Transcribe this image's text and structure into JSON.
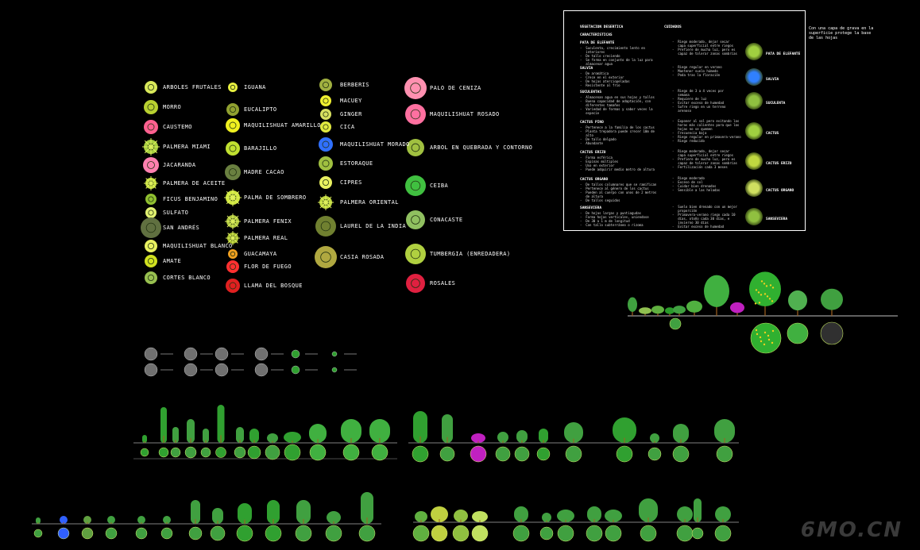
{
  "legend_list": [
    {
      "id": "a1",
      "label": "ARBOLES FRUTALES",
      "color": "#d8e85a",
      "icon": "tree-symbol-icon"
    },
    {
      "id": "a2",
      "label": "MORRO",
      "color": "#b8d030",
      "icon": "tree-symbol-icon"
    },
    {
      "id": "a3",
      "label": "CAUSTEMO",
      "color": "#ff6090",
      "icon": "flower-symbol-icon"
    },
    {
      "id": "a4",
      "label": "PALMERA MIAMI",
      "color": "#a8d040",
      "icon": "palm-symbol-icon"
    },
    {
      "id": "a5",
      "label": "JACARANDA",
      "color": "#ff80b0",
      "icon": "tree-symbol-icon"
    },
    {
      "id": "a6",
      "label": "PALMERA DE ACEITE",
      "color": "#c8e040",
      "icon": "palm-symbol-icon"
    },
    {
      "id": "a7",
      "label": "FICUS BENJAMINO",
      "color": "#90c030",
      "icon": "tree-symbol-icon"
    },
    {
      "id": "a8",
      "label": "SULFATO",
      "color": "#e0f070",
      "icon": "tree-symbol-icon"
    },
    {
      "id": "a9",
      "label": "SAN ANDRÉS",
      "color": "#607040",
      "icon": "tree-symbol-icon"
    },
    {
      "id": "a10",
      "label": "MAQUILISHUAT BLANCO",
      "color": "#e8f060",
      "icon": "tree-symbol-icon"
    },
    {
      "id": "a11",
      "label": "AMATE",
      "color": "#d0e020",
      "icon": "tree-symbol-icon"
    },
    {
      "id": "a12",
      "label": "CORTES BLANCO",
      "color": "#98c050",
      "icon": "tree-symbol-icon"
    },
    {
      "id": "b1",
      "label": "IGUANA",
      "color": "#e8f040",
      "icon": "shrub-symbol-icon"
    },
    {
      "id": "b2",
      "label": "EUCALIPTO",
      "color": "#90a030",
      "icon": "tree-symbol-icon"
    },
    {
      "id": "b3",
      "label": "MAQUILISHUAT AMARILLO",
      "color": "#f0f020",
      "icon": "tree-symbol-icon"
    },
    {
      "id": "b4",
      "label": "BARAJILLO",
      "color": "#c0e030",
      "icon": "tree-symbol-icon"
    },
    {
      "id": "b5",
      "label": "MADRE CACAO",
      "color": "#6a8040",
      "icon": "tree-symbol-icon"
    },
    {
      "id": "b6",
      "label": "PALMA DE SOMBRERO",
      "color": "#d0e840",
      "icon": "palm-symbol-icon"
    },
    {
      "id": "b7",
      "label": "PALMERA FENIX",
      "color": "#b0c840",
      "icon": "palm-symbol-icon"
    },
    {
      "id": "b8",
      "label": "PALMERA REAL",
      "color": "#a8c030",
      "icon": "palm-symbol-icon"
    },
    {
      "id": "b9",
      "label": "GUACAMAYA",
      "color": "#f0a020",
      "icon": "flower-symbol-icon"
    },
    {
      "id": "b10",
      "label": "FLOR DE FUEGO",
      "color": "#ff3030",
      "icon": "flower-symbol-icon"
    },
    {
      "id": "b11",
      "label": "LLAMA DEL BOSQUE",
      "color": "#e02020",
      "icon": "flower-symbol-icon"
    },
    {
      "id": "c1",
      "label": "BERBERIS",
      "color": "#a0b040",
      "icon": "shrub-symbol-icon"
    },
    {
      "id": "c2",
      "label": "MACUEY",
      "color": "#f0f030",
      "icon": "shrub-symbol-icon"
    },
    {
      "id": "c3",
      "label": "GINGER",
      "color": "#d8e060",
      "icon": "shrub-symbol-icon"
    },
    {
      "id": "c4",
      "label": "CICA",
      "color": "#e0e840",
      "icon": "shrub-symbol-icon"
    },
    {
      "id": "c5",
      "label": "MAQUILISHUAT MORADO",
      "color": "#3070ff",
      "icon": "tree-symbol-icon"
    },
    {
      "id": "c6",
      "label": "ESTORAQUE",
      "color": "#a0c040",
      "icon": "tree-symbol-icon"
    },
    {
      "id": "c7",
      "label": "CIPRES",
      "color": "#e8f060",
      "icon": "tree-symbol-icon"
    },
    {
      "id": "c8",
      "label": "PALMERA ORIENTAL",
      "color": "#c0d840",
      "icon": "palm-symbol-icon"
    },
    {
      "id": "c9",
      "label": "LAUREL DE LA INDIA",
      "color": "#708030",
      "icon": "tree-symbol-icon"
    },
    {
      "id": "c10",
      "label": "CASIA ROSADA",
      "color": "#b0a840",
      "icon": "tree-symbol-icon"
    },
    {
      "id": "d1",
      "label": "PALO DE CENIZA",
      "color": "#ff90b0",
      "icon": "flower-symbol-icon"
    },
    {
      "id": "d2",
      "label": "MAQUILISHUAT ROSADO",
      "color": "#ff70a0",
      "icon": "flower-symbol-icon"
    },
    {
      "id": "d3",
      "label": "ARBOL EN QUEBRADA Y CONTORNO",
      "color": "#a0c040",
      "icon": "tree-symbol-icon"
    },
    {
      "id": "d4",
      "label": "CEIBA",
      "color": "#40c040",
      "icon": "tree-symbol-icon"
    },
    {
      "id": "d5",
      "label": "CONACASTE",
      "color": "#90c060",
      "icon": "tree-symbol-icon"
    },
    {
      "id": "d6",
      "label": "TUMBERGIA (ENREDADERA)",
      "color": "#b0d040",
      "icon": "vine-symbol-icon"
    },
    {
      "id": "d7",
      "label": "ROSALES",
      "color": "#e02040",
      "icon": "flower-symbol-icon"
    }
  ],
  "table": {
    "col1_header": "VEGETACION DESERTICA",
    "col2_header": "CUIDADOS",
    "sub_header": "CARACTERISTICAS",
    "rows": [
      {
        "name": "PATA DE ELEFANTE",
        "chars": [
          "-  Suculenta, crecimiento lento en",
          "   interiores",
          "-  De tallo creciendo",
          "-  Se forma en conjunto de la luz para",
          "   almacenar agua"
        ],
        "care": [
          "-  Riego moderado, dejar secar",
          "   capa superficial entre riegos",
          "-  Prefiere de mucha luz, pero es",
          "   capaz de tolerar zonas sombrías"
        ],
        "icon_label": "PATA DE ELEFANTE"
      },
      {
        "name": "SALVIA",
        "chars": [
          "-  De aromática",
          "-  Crece en el exterior",
          "-  De hojas aterciopeladas",
          "-  Resistente al frío"
        ],
        "care": [
          "-  Riego regular en verano",
          "-  Mantener suelo húmedo",
          "-  Poda tras la floración"
        ],
        "icon_label": "SALVIA"
      },
      {
        "name": "SUCULENTAS",
        "chars": [
          "-  Almacenan agua en sus hojas y tallos",
          "-  Buena capacidad de adaptación, con",
          "   diferentes tamaños",
          "-  Variedad de formas y sabor veces la",
          "   especie"
        ],
        "care": [
          "-  Riego de 3 a 4 veces por",
          "   semana",
          "-  Requiere de luz",
          "-  Evitar exceso de humedad",
          "-  Sufre riego en un terreno",
          "   arenoso"
        ],
        "icon_label": "SUCULENTA"
      },
      {
        "name": "CACTUS PINO",
        "chars": [
          "-  Pertenece a la familia de los cactus",
          "-  Planta trepadora puede crecer 10m de",
          "   alto",
          "-  De tallo delgado",
          "-  Abundante"
        ],
        "care": [
          "-  Exponer al sol pero evitando las",
          "   horas más calientes para que las",
          "   hojas no se quemen",
          "-  Frecuencia baja",
          "-  Riego regular en primavera-verano",
          "-  Riego reducido"
        ],
        "icon_label": "CACTUS"
      },
      {
        "name": "CACTUS ERIZO",
        "chars": [
          "-  Forma esférica",
          "-  Espinas múltiples",
          "-  Uso en exterior",
          "-  Puede adquirir medio metro de altura"
        ],
        "care": [
          "-  Riego moderado, dejar secar",
          "   capa superficial entre riegos",
          "-  Prefiere de mucha luz, pero es",
          "   capaz de tolerar zonas sombrías",
          "-  Fertilización cada 3 meses"
        ],
        "icon_label": "CACTUS ERIZO"
      },
      {
        "name": "CACTUS ORGANO",
        "chars": [
          "-  De tallos columnares que se ramifican",
          "-  Pertenece al género de los cactus",
          "-  Pueden al cuerpo con unos de 2 metros",
          "   de altura",
          "-  De tallos seguidos"
        ],
        "care": [
          "-  Riego moderado",
          "-  Exceso de sol",
          "-  Cuidar bien drenados",
          "-  Sensible a las heladas"
        ],
        "icon_label": "CACTUS ORGANO"
      },
      {
        "name": "SANSEVIERA",
        "chars": [
          "-  De hojas largas y puntiagudas",
          "-  Forma hojas verticales, uniendose",
          "-  De 30 a 1 m de longitud",
          "-  Con tallo subterráneo o rizoma"
        ],
        "care": [
          "-  Suelo bien drenado con un mejor",
          "   proporción",
          "-  Primavera-verano riego cada 10",
          "   días, otoño cada 30 días, e",
          "   invierno 30 días",
          "-  Evitar exceso de humedad"
        ],
        "icon_label": "SANSEVIERA"
      }
    ]
  },
  "note": "Con una capa de grava en la superficie protege la base de las hojas",
  "watermark": "6MO.CN"
}
